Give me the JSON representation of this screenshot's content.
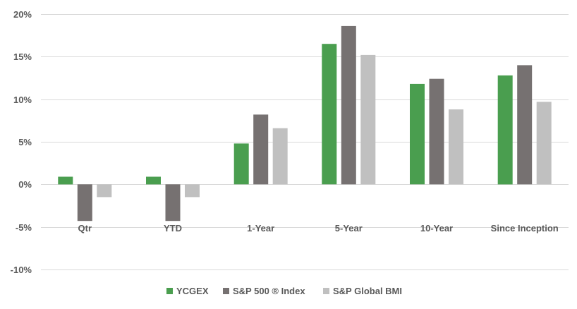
{
  "chart_data": {
    "type": "bar",
    "categories": [
      "Qtr",
      "YTD",
      "1-Year",
      "5-Year",
      "10-Year",
      "Since Inception"
    ],
    "series": [
      {
        "name": "YCGEX",
        "color": "#4a9e4f",
        "values": [
          0.9,
          0.9,
          4.8,
          16.5,
          11.8,
          12.8
        ]
      },
      {
        "name": "S&P 500 ® Index",
        "color": "#767171",
        "values": [
          -4.3,
          -4.3,
          8.2,
          18.6,
          12.4,
          14.0
        ]
      },
      {
        "name": "S&P Global BMI",
        "color": "#c0c0c0",
        "values": [
          -1.5,
          -1.5,
          6.6,
          15.2,
          8.8,
          9.7
        ]
      }
    ],
    "ylim": [
      -10,
      20
    ],
    "ytick_values": [
      -10,
      -5,
      0,
      5,
      10,
      15,
      20
    ],
    "ytick_labels": [
      "-10%",
      "-5%",
      "0%",
      "5%",
      "10%",
      "15%",
      "20%"
    ],
    "grid": true,
    "legend_position": "bottom"
  }
}
